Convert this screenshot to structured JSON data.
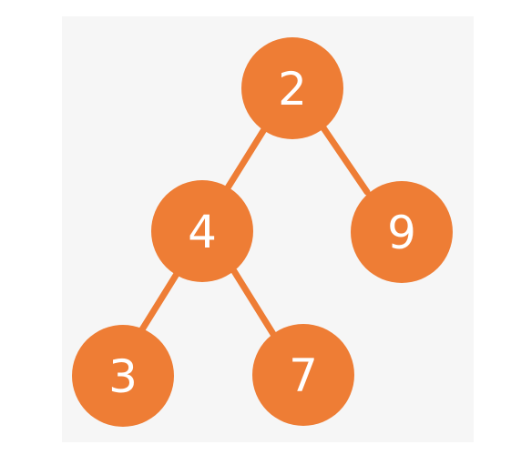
{
  "tree": {
    "color": "#ee7d35",
    "label_color": "#ffffff",
    "background_color": "#f6f6f6",
    "nodes": [
      {
        "id": "n2",
        "label": "2"
      },
      {
        "id": "n4",
        "label": "4"
      },
      {
        "id": "n9",
        "label": "9"
      },
      {
        "id": "n3",
        "label": "3"
      },
      {
        "id": "n7",
        "label": "7"
      }
    ],
    "edges": [
      {
        "from": "n2",
        "to": "n4"
      },
      {
        "from": "n2",
        "to": "n9"
      },
      {
        "from": "n4",
        "to": "n3"
      },
      {
        "from": "n4",
        "to": "n7"
      }
    ]
  }
}
